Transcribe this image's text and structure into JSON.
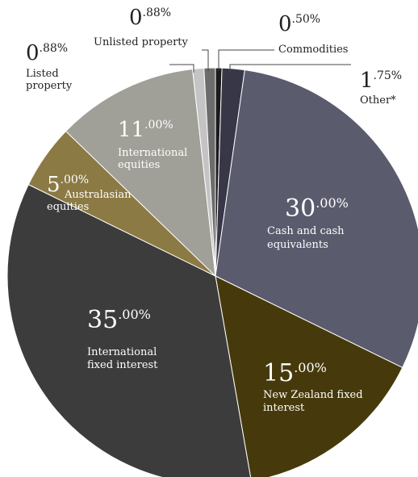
{
  "chart_data": {
    "type": "pie",
    "start_angle_deg": 0,
    "direction": "clockwise",
    "slices": [
      {
        "key": "commodities",
        "label": "Commodities",
        "value": 0.5,
        "whole": "0",
        "decimals": ".50%",
        "color": "#1b1b1b"
      },
      {
        "key": "other",
        "label": "Other*",
        "value": 1.75,
        "whole": "1",
        "decimals": ".75%",
        "color": "#373748"
      },
      {
        "key": "cash",
        "label": "Cash and cash equivalents",
        "label_lines": [
          "Cash and cash",
          "equivalents"
        ],
        "value": 30.0,
        "whole": "30",
        "decimals": ".00%",
        "color": "#5b5b6e"
      },
      {
        "key": "nz_fixed",
        "label": "New Zealand fixed interest",
        "label_lines": [
          "New Zealand fixed",
          "interest"
        ],
        "value": 15.0,
        "whole": "15",
        "decimals": ".00%",
        "color": "#463a0c"
      },
      {
        "key": "intl_fixed",
        "label": "International fixed interest",
        "label_lines": [
          "International",
          "fixed interest"
        ],
        "value": 35.0,
        "whole": "35",
        "decimals": ".00%",
        "color": "#3c3c3c"
      },
      {
        "key": "aus_equities",
        "label": "Australasian equities",
        "label_lines": [
          "Australasian",
          "equities"
        ],
        "value": 5.0,
        "whole": "5",
        "decimals": ".00%",
        "color": "#8c7a44"
      },
      {
        "key": "intl_equities",
        "label": "International equities",
        "label_lines": [
          "International",
          "equities"
        ],
        "value": 11.0,
        "whole": "11",
        "decimals": ".00%",
        "color": "#a09f98"
      },
      {
        "key": "listed_property",
        "label": "Listed property",
        "label_lines": [
          "Listed",
          "property"
        ],
        "value": 0.88,
        "whole": "0",
        "decimals": ".88%",
        "color": "#c4c4c4"
      },
      {
        "key": "unlisted_property",
        "label": "Unlisted property",
        "value": 0.88,
        "whole": "0",
        "decimals": ".88%",
        "color": "#6c6c6c"
      }
    ]
  }
}
